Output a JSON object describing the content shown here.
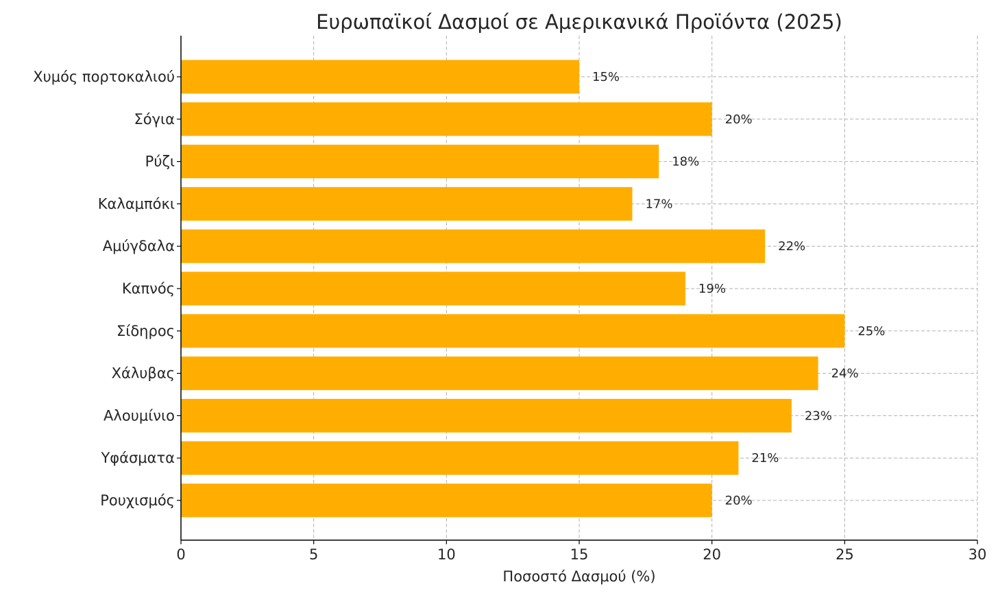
{
  "chart_data": {
    "type": "bar",
    "orientation": "horizontal",
    "title": "Ευρωπαϊκοί Δασμοί σε Αμερικανικά Προϊόντα (2025)",
    "xlabel": "Ποσοστό Δασμού (%)",
    "ylabel": "",
    "categories": [
      "Χυμός πορτοκαλιού",
      "Σόγια",
      "Ρύζι",
      "Καλαμπόκι",
      "Αμύγδαλα",
      "Καπνός",
      "Σίδηρος",
      "Χάλυβας",
      "Αλουμίνιο",
      "Υφάσματα",
      "Ρουχισμός"
    ],
    "values": [
      15,
      20,
      18,
      17,
      22,
      19,
      25,
      24,
      23,
      21,
      20
    ],
    "data_labels": [
      "15%",
      "20%",
      "18%",
      "17%",
      "22%",
      "19%",
      "25%",
      "24%",
      "23%",
      "21%",
      "20%"
    ],
    "xlim": [
      0,
      30
    ],
    "xticks": [
      0,
      5,
      10,
      15,
      20,
      25,
      30
    ],
    "xtick_labels": [
      "0",
      "5",
      "10",
      "15",
      "20",
      "25",
      "30"
    ],
    "grid": true,
    "legend": "none",
    "bar_color": "#FFAE00"
  }
}
